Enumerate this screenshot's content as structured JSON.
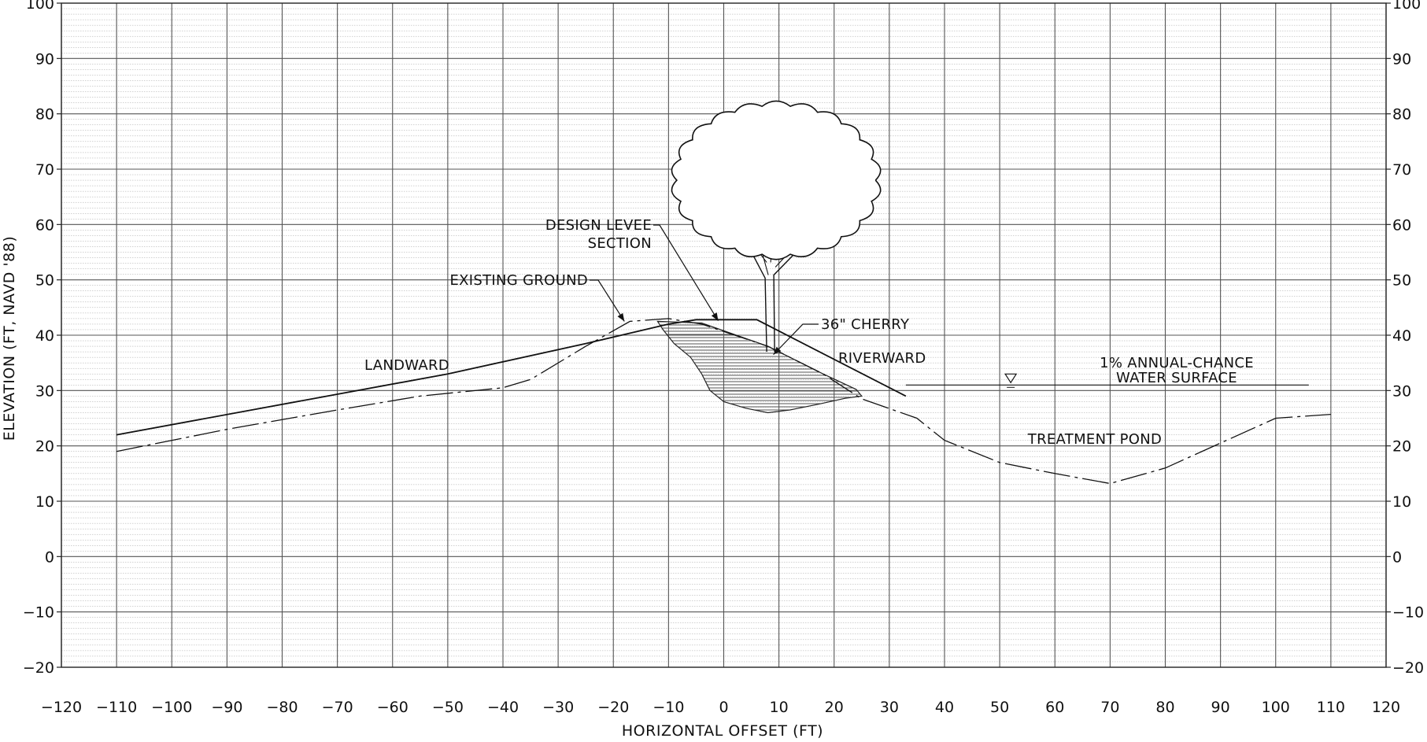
{
  "chart_data": {
    "type": "line",
    "xlabel": "HORIZONTAL OFFSET (FT)",
    "ylabel": "ELEVATION (FT, NAVD '88)",
    "xlim": [
      -120,
      120
    ],
    "ylim": [
      -20,
      100
    ],
    "x_ticks": [
      -120,
      -110,
      -100,
      -90,
      -80,
      -70,
      -60,
      -50,
      -40,
      -30,
      -20,
      -10,
      0,
      10,
      20,
      30,
      40,
      50,
      60,
      70,
      80,
      90,
      100,
      110,
      120
    ],
    "y_ticks": [
      -20,
      -10,
      0,
      10,
      20,
      30,
      40,
      50,
      60,
      70,
      80,
      90,
      100
    ],
    "y_ticks_right": true,
    "grid": true,
    "minor_grid": true,
    "series": [
      {
        "name": "DESIGN LEVEE SECTION",
        "style": "solid",
        "points": [
          [
            -110,
            22
          ],
          [
            -50,
            33
          ],
          [
            -25,
            38.5
          ],
          [
            -10,
            42
          ],
          [
            -5,
            42.8
          ],
          [
            6,
            42.8
          ],
          [
            33,
            29
          ]
        ]
      },
      {
        "name": "EXISTING GROUND",
        "style": "dashed",
        "points": [
          [
            -110,
            19
          ],
          [
            -90,
            23
          ],
          [
            -70,
            26.5
          ],
          [
            -55,
            29
          ],
          [
            -40,
            30.5
          ],
          [
            -35,
            32
          ],
          [
            -25,
            38
          ],
          [
            -17,
            42.5
          ],
          [
            -10,
            43
          ],
          [
            -4,
            42
          ],
          [
            8,
            38
          ],
          [
            18,
            33
          ],
          [
            25,
            28.5
          ],
          [
            35,
            25
          ],
          [
            40,
            21
          ],
          [
            50,
            17
          ],
          [
            60,
            15
          ],
          [
            70,
            13.2
          ],
          [
            80,
            16
          ],
          [
            90,
            20.5
          ],
          [
            100,
            25
          ],
          [
            110,
            25.7
          ]
        ]
      },
      {
        "name": "1% ANNUAL-CHANCE WATER SURFACE",
        "style": "solid",
        "points": [
          [
            33,
            31
          ],
          [
            106,
            31
          ]
        ]
      }
    ],
    "regions": [
      {
        "name": "shaded-fill-zone",
        "pattern": "hatch",
        "points": [
          [
            -12,
            42.5
          ],
          [
            -4,
            42.2
          ],
          [
            8,
            38
          ],
          [
            18,
            33
          ],
          [
            24,
            30.2
          ],
          [
            25,
            29
          ],
          [
            22,
            28.6
          ],
          [
            17,
            27.5
          ],
          [
            12,
            26.5
          ],
          [
            8,
            26
          ],
          [
            4,
            26.8
          ],
          [
            0,
            28
          ],
          [
            -2.5,
            30
          ],
          [
            -4,
            33
          ],
          [
            -6,
            36
          ],
          [
            -9,
            38.5
          ],
          [
            -11,
            41
          ]
        ]
      }
    ],
    "annotations": [
      {
        "name": "design-levee",
        "line1": "DESIGN LEVEE",
        "line2": "SECTION",
        "target": [
          -1,
          42.6
        ]
      },
      {
        "name": "existing-ground",
        "line1": "EXISTING GROUND",
        "target": [
          -18,
          42.5
        ]
      },
      {
        "name": "cherry",
        "line1": "36\" CHERRY",
        "target": [
          9,
          36.5
        ]
      },
      {
        "name": "landward",
        "line1": "LANDWARD"
      },
      {
        "name": "riverward",
        "line1": "RIVERWARD"
      },
      {
        "name": "water-surface",
        "line1": "1% ANNUAL-CHANCE",
        "line2": "WATER SURFACE",
        "symbol_x": 52,
        "symbol_y": 31
      },
      {
        "name": "treatment-pond",
        "line1": "TREATMENT POND"
      }
    ],
    "tree": {
      "name": "36\" CHERRY",
      "trunk_base": [
        8.5,
        37
      ],
      "trunk_top": [
        8.5,
        56
      ],
      "crown_center": [
        9.5,
        68
      ],
      "crown_radius_x": 18,
      "crown_radius_y": 13.5
    }
  },
  "colors": {
    "background": "#ffffff",
    "major_grid": "#555555",
    "minor_grid": "#9a9a9a",
    "linework": "#111111",
    "hatch": "#555555"
  }
}
